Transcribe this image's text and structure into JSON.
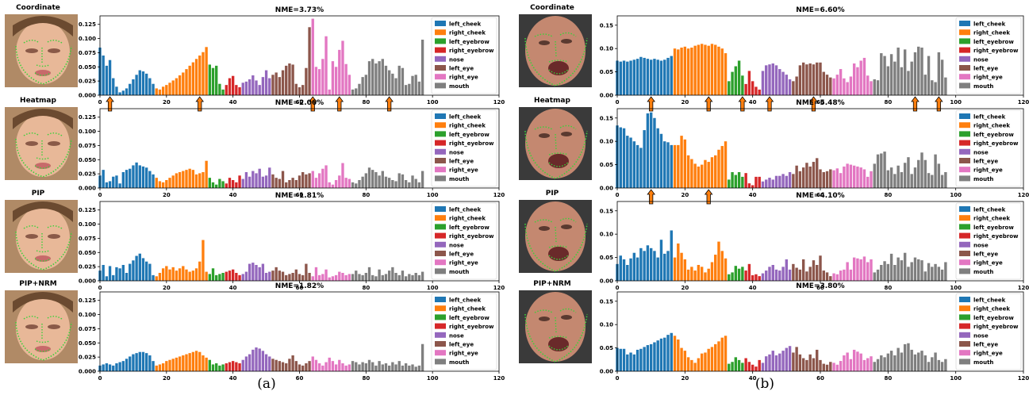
{
  "captions": [
    "(a)",
    "(b)"
  ],
  "legend_entries": [
    "left_cheek",
    "right_cheek",
    "left_eyebrow",
    "right_eyebrow",
    "nose",
    "left_eye",
    "right_eye",
    "mouth"
  ],
  "colors": {
    "left_cheek": "#1f77b4",
    "right_cheek": "#ff7f0e",
    "left_eyebrow": "#2ca02c",
    "right_eyebrow": "#d62728",
    "nose": "#9467bd",
    "left_eye": "#8c564b",
    "right_eye": "#e377c2",
    "mouth": "#7f7f7f",
    "arrow": "#ff7f0e"
  },
  "chart_data": [
    {
      "type": "bar",
      "panel": "a",
      "method": "Coordinate",
      "title": "NME=3.73%",
      "xlim": [
        0,
        120
      ],
      "ylim": [
        0,
        0.14
      ],
      "xticks": [
        0,
        20,
        40,
        60,
        80,
        100,
        120
      ],
      "yticks": [
        0.0,
        0.025,
        0.05,
        0.075,
        0.1,
        0.125
      ],
      "ytick_labels": [
        "0.000",
        "0.025",
        "0.050",
        "0.075",
        "0.100",
        "0.125"
      ],
      "arrows_x": [
        3,
        30,
        64,
        72,
        87
      ],
      "values": [
        0.084,
        0.07,
        0.052,
        0.062,
        0.03,
        0.015,
        0.005,
        0.008,
        0.012,
        0.02,
        0.028,
        0.036,
        0.044,
        0.042,
        0.038,
        0.03,
        0.02,
        0.012,
        0.01,
        0.015,
        0.018,
        0.022,
        0.026,
        0.03,
        0.035,
        0.04,
        0.046,
        0.052,
        0.058,
        0.064,
        0.07,
        0.076,
        0.085,
        0.054,
        0.048,
        0.052,
        0.02,
        0.01,
        0.018,
        0.03,
        0.034,
        0.018,
        0.014,
        0.022,
        0.024,
        0.028,
        0.035,
        0.026,
        0.018,
        0.032,
        0.044,
        0.03,
        0.036,
        0.04,
        0.032,
        0.044,
        0.052,
        0.056,
        0.054,
        0.02,
        0.014,
        0.018,
        0.048,
        0.12,
        0.135,
        0.05,
        0.046,
        0.064,
        0.104,
        0.01,
        0.06,
        0.05,
        0.08,
        0.096,
        0.055,
        0.036,
        0.01,
        0.012,
        0.02,
        0.032,
        0.036,
        0.06,
        0.064,
        0.056,
        0.06,
        0.064,
        0.052,
        0.044,
        0.038,
        0.03,
        0.052,
        0.048,
        0.018,
        0.02,
        0.034,
        0.036,
        0.024,
        0.098
      ]
    },
    {
      "type": "bar",
      "panel": "a",
      "method": "Heatmap",
      "title": "NME=2.06%",
      "xlim": [
        0,
        120
      ],
      "ylim": [
        0,
        0.14
      ],
      "xticks": [
        0,
        20,
        40,
        60,
        80,
        100,
        120
      ],
      "yticks": [
        0.0,
        0.025,
        0.05,
        0.075,
        0.1,
        0.125
      ],
      "ytick_labels": [
        "0.000",
        "0.025",
        "0.050",
        "0.075",
        "0.100",
        "0.125"
      ],
      "arrows_x": [],
      "values": [
        0.022,
        0.032,
        0.01,
        0.012,
        0.02,
        0.022,
        0.008,
        0.028,
        0.032,
        0.034,
        0.04,
        0.045,
        0.04,
        0.038,
        0.036,
        0.03,
        0.024,
        0.018,
        0.012,
        0.01,
        0.014,
        0.018,
        0.022,
        0.026,
        0.028,
        0.03,
        0.032,
        0.034,
        0.032,
        0.024,
        0.026,
        0.028,
        0.048,
        0.018,
        0.01,
        0.006,
        0.016,
        0.012,
        0.008,
        0.018,
        0.014,
        0.01,
        0.022,
        0.016,
        0.028,
        0.02,
        0.03,
        0.026,
        0.034,
        0.02,
        0.022,
        0.036,
        0.024,
        0.018,
        0.016,
        0.03,
        0.01,
        0.014,
        0.018,
        0.014,
        0.022,
        0.028,
        0.024,
        0.026,
        0.03,
        0.018,
        0.026,
        0.034,
        0.04,
        0.01,
        0.006,
        0.014,
        0.022,
        0.044,
        0.018,
        0.016,
        0.01,
        0.008,
        0.014,
        0.02,
        0.026,
        0.036,
        0.032,
        0.028,
        0.022,
        0.03,
        0.02,
        0.018,
        0.014,
        0.012,
        0.026,
        0.024,
        0.014,
        0.01,
        0.022,
        0.016,
        0.01,
        0.03
      ]
    },
    {
      "type": "bar",
      "panel": "a",
      "method": "PIP",
      "title": "NME=1.81%",
      "xlim": [
        0,
        120
      ],
      "ylim": [
        0,
        0.14
      ],
      "xticks": [
        0,
        20,
        40,
        60,
        80,
        100,
        120
      ],
      "yticks": [
        0.0,
        0.025,
        0.05,
        0.075,
        0.1,
        0.125
      ],
      "ytick_labels": [
        "0.000",
        "0.025",
        "0.050",
        "0.075",
        "0.100",
        "0.125"
      ],
      "arrows_x": [],
      "values": [
        0.018,
        0.028,
        0.008,
        0.026,
        0.01,
        0.024,
        0.022,
        0.028,
        0.014,
        0.03,
        0.036,
        0.044,
        0.048,
        0.04,
        0.034,
        0.03,
        0.01,
        0.008,
        0.014,
        0.022,
        0.026,
        0.02,
        0.024,
        0.018,
        0.022,
        0.026,
        0.02,
        0.016,
        0.018,
        0.022,
        0.034,
        0.072,
        0.016,
        0.012,
        0.022,
        0.01,
        0.012,
        0.014,
        0.016,
        0.018,
        0.02,
        0.014,
        0.01,
        0.012,
        0.016,
        0.03,
        0.032,
        0.028,
        0.024,
        0.03,
        0.014,
        0.016,
        0.018,
        0.024,
        0.018,
        0.016,
        0.01,
        0.012,
        0.014,
        0.02,
        0.012,
        0.01,
        0.03,
        0.014,
        0.008,
        0.024,
        0.01,
        0.012,
        0.02,
        0.006,
        0.008,
        0.01,
        0.016,
        0.014,
        0.01,
        0.012,
        0.012,
        0.018,
        0.012,
        0.01,
        0.014,
        0.024,
        0.01,
        0.008,
        0.02,
        0.01,
        0.012,
        0.018,
        0.024,
        0.014,
        0.01,
        0.018,
        0.008,
        0.012,
        0.01,
        0.014,
        0.01,
        0.016
      ]
    },
    {
      "type": "bar",
      "panel": "a",
      "method": "PIP+NRM",
      "title": "NME=1.82%",
      "xlim": [
        0,
        120
      ],
      "ylim": [
        0,
        0.14
      ],
      "xticks": [
        0,
        20,
        40,
        60,
        80,
        100,
        120
      ],
      "yticks": [
        0.0,
        0.025,
        0.05,
        0.075,
        0.1,
        0.125
      ],
      "ytick_labels": [
        "0.000",
        "0.025",
        "0.050",
        "0.075",
        "0.100",
        "0.125"
      ],
      "arrows_x": [],
      "values": [
        0.01,
        0.012,
        0.014,
        0.012,
        0.01,
        0.014,
        0.016,
        0.018,
        0.022,
        0.026,
        0.03,
        0.032,
        0.034,
        0.034,
        0.032,
        0.028,
        0.018,
        0.01,
        0.012,
        0.014,
        0.018,
        0.02,
        0.022,
        0.024,
        0.026,
        0.028,
        0.03,
        0.032,
        0.034,
        0.036,
        0.034,
        0.028,
        0.024,
        0.02,
        0.012,
        0.014,
        0.01,
        0.012,
        0.014,
        0.016,
        0.018,
        0.016,
        0.014,
        0.02,
        0.026,
        0.03,
        0.038,
        0.042,
        0.04,
        0.036,
        0.03,
        0.026,
        0.022,
        0.02,
        0.018,
        0.016,
        0.014,
        0.022,
        0.028,
        0.018,
        0.012,
        0.01,
        0.014,
        0.018,
        0.026,
        0.02,
        0.014,
        0.01,
        0.016,
        0.024,
        0.018,
        0.012,
        0.02,
        0.014,
        0.01,
        0.012,
        0.018,
        0.016,
        0.012,
        0.016,
        0.014,
        0.02,
        0.016,
        0.01,
        0.018,
        0.012,
        0.014,
        0.01,
        0.016,
        0.012,
        0.018,
        0.01,
        0.014,
        0.01,
        0.012,
        0.008,
        0.01,
        0.048
      ]
    },
    {
      "type": "bar",
      "panel": "b",
      "method": "Coordinate",
      "title": "NME=6.60%",
      "xlim": [
        0,
        120
      ],
      "ylim": [
        0,
        0.17
      ],
      "xticks": [
        0,
        20,
        40,
        60,
        80,
        100,
        120
      ],
      "yticks": [
        0.0,
        0.05,
        0.1,
        0.15
      ],
      "ytick_labels": [
        "0.00",
        "0.05",
        "0.10",
        "0.15"
      ],
      "arrows_x": [
        10,
        27,
        37,
        45,
        58,
        88,
        95
      ],
      "values": [
        0.074,
        0.072,
        0.074,
        0.072,
        0.074,
        0.076,
        0.078,
        0.082,
        0.08,
        0.078,
        0.076,
        0.078,
        0.076,
        0.074,
        0.076,
        0.08,
        0.084,
        0.1,
        0.098,
        0.102,
        0.104,
        0.1,
        0.102,
        0.106,
        0.108,
        0.11,
        0.108,
        0.106,
        0.11,
        0.108,
        0.104,
        0.1,
        0.09,
        0.03,
        0.05,
        0.062,
        0.074,
        0.042,
        0.024,
        0.052,
        0.03,
        0.018,
        0.012,
        0.052,
        0.064,
        0.066,
        0.068,
        0.064,
        0.056,
        0.05,
        0.044,
        0.034,
        0.03,
        0.04,
        0.064,
        0.07,
        0.066,
        0.068,
        0.066,
        0.07,
        0.07,
        0.05,
        0.044,
        0.038,
        0.036,
        0.044,
        0.056,
        0.036,
        0.028,
        0.04,
        0.068,
        0.06,
        0.074,
        0.08,
        0.042,
        0.03,
        0.034,
        0.032,
        0.09,
        0.084,
        0.062,
        0.088,
        0.072,
        0.102,
        0.06,
        0.098,
        0.052,
        0.072,
        0.092,
        0.104,
        0.102,
        0.044,
        0.084,
        0.032,
        0.028,
        0.092,
        0.076,
        0.038
      ]
    },
    {
      "type": "bar",
      "panel": "b",
      "method": "Heatmap",
      "title": "NME=5.48%",
      "xlim": [
        0,
        120
      ],
      "ylim": [
        0,
        0.17
      ],
      "xticks": [
        0,
        20,
        40,
        60,
        80,
        100,
        120
      ],
      "yticks": [
        0.0,
        0.05,
        0.1,
        0.15
      ],
      "ytick_labels": [
        "0.00",
        "0.05",
        "0.10",
        "0.15"
      ],
      "arrows_x": [
        10,
        27
      ],
      "values": [
        0.134,
        0.13,
        0.128,
        0.112,
        0.108,
        0.1,
        0.092,
        0.086,
        0.124,
        0.16,
        0.162,
        0.15,
        0.128,
        0.116,
        0.1,
        0.098,
        0.092,
        0.092,
        0.092,
        0.112,
        0.104,
        0.07,
        0.062,
        0.052,
        0.046,
        0.05,
        0.06,
        0.056,
        0.066,
        0.07,
        0.082,
        0.09,
        0.1,
        0.018,
        0.034,
        0.028,
        0.034,
        0.024,
        0.032,
        0.01,
        0.006,
        0.024,
        0.024,
        0.014,
        0.018,
        0.022,
        0.018,
        0.026,
        0.026,
        0.03,
        0.026,
        0.034,
        0.03,
        0.048,
        0.036,
        0.044,
        0.054,
        0.046,
        0.056,
        0.064,
        0.04,
        0.034,
        0.036,
        0.04,
        0.038,
        0.042,
        0.032,
        0.046,
        0.052,
        0.05,
        0.048,
        0.046,
        0.044,
        0.04,
        0.024,
        0.036,
        0.052,
        0.072,
        0.074,
        0.078,
        0.038,
        0.044,
        0.03,
        0.048,
        0.034,
        0.054,
        0.066,
        0.03,
        0.044,
        0.06,
        0.076,
        0.06,
        0.032,
        0.028,
        0.072,
        0.052,
        0.028,
        0.034
      ]
    },
    {
      "type": "bar",
      "panel": "b",
      "method": "PIP",
      "title": "NME=4.10%",
      "xlim": [
        0,
        120
      ],
      "ylim": [
        0,
        0.17
      ],
      "xticks": [
        0,
        20,
        40,
        60,
        80,
        100,
        120
      ],
      "yticks": [
        0.0,
        0.05,
        0.1,
        0.15
      ],
      "ytick_labels": [
        "0.00",
        "0.05",
        "0.10",
        "0.15"
      ],
      "arrows_x": [],
      "values": [
        0.036,
        0.054,
        0.046,
        0.034,
        0.048,
        0.06,
        0.05,
        0.07,
        0.064,
        0.076,
        0.07,
        0.064,
        0.05,
        0.088,
        0.058,
        0.064,
        0.108,
        0.05,
        0.08,
        0.06,
        0.046,
        0.024,
        0.03,
        0.022,
        0.034,
        0.03,
        0.018,
        0.026,
        0.04,
        0.056,
        0.084,
        0.064,
        0.048,
        0.014,
        0.018,
        0.032,
        0.026,
        0.03,
        0.022,
        0.036,
        0.012,
        0.014,
        0.01,
        0.016,
        0.022,
        0.03,
        0.034,
        0.024,
        0.022,
        0.03,
        0.046,
        0.024,
        0.036,
        0.028,
        0.024,
        0.046,
        0.02,
        0.03,
        0.044,
        0.034,
        0.054,
        0.022,
        0.018,
        0.01,
        0.016,
        0.014,
        0.022,
        0.024,
        0.04,
        0.024,
        0.05,
        0.048,
        0.046,
        0.052,
        0.04,
        0.046,
        0.018,
        0.024,
        0.034,
        0.042,
        0.036,
        0.058,
        0.034,
        0.05,
        0.044,
        0.06,
        0.03,
        0.04,
        0.05,
        0.046,
        0.044,
        0.02,
        0.038,
        0.03,
        0.036,
        0.03,
        0.024,
        0.04
      ]
    },
    {
      "type": "bar",
      "panel": "b",
      "method": "PIP+NRM",
      "title": "NME=3.80%",
      "xlim": [
        0,
        120
      ],
      "ylim": [
        0,
        0.17
      ],
      "xticks": [
        0,
        20,
        40,
        60,
        80,
        100,
        120
      ],
      "yticks": [
        0.0,
        0.05,
        0.1,
        0.15
      ],
      "ytick_labels": [
        "0.00",
        "0.05",
        "0.10",
        "0.15"
      ],
      "arrows_x": [],
      "values": [
        0.05,
        0.048,
        0.048,
        0.036,
        0.04,
        0.036,
        0.046,
        0.048,
        0.052,
        0.056,
        0.058,
        0.062,
        0.066,
        0.07,
        0.072,
        0.078,
        0.082,
        0.076,
        0.068,
        0.05,
        0.044,
        0.03,
        0.024,
        0.018,
        0.028,
        0.038,
        0.04,
        0.048,
        0.052,
        0.058,
        0.064,
        0.072,
        0.076,
        0.016,
        0.02,
        0.03,
        0.024,
        0.018,
        0.028,
        0.02,
        0.014,
        0.01,
        0.024,
        0.018,
        0.032,
        0.036,
        0.044,
        0.034,
        0.038,
        0.044,
        0.05,
        0.054,
        0.04,
        0.052,
        0.036,
        0.028,
        0.024,
        0.036,
        0.028,
        0.046,
        0.024,
        0.016,
        0.014,
        0.02,
        0.018,
        0.014,
        0.022,
        0.034,
        0.04,
        0.026,
        0.046,
        0.042,
        0.038,
        0.024,
        0.028,
        0.032,
        0.02,
        0.026,
        0.034,
        0.03,
        0.038,
        0.044,
        0.034,
        0.05,
        0.04,
        0.058,
        0.06,
        0.046,
        0.036,
        0.04,
        0.044,
        0.034,
        0.02,
        0.03,
        0.04,
        0.024,
        0.02,
        0.026
      ]
    }
  ]
}
